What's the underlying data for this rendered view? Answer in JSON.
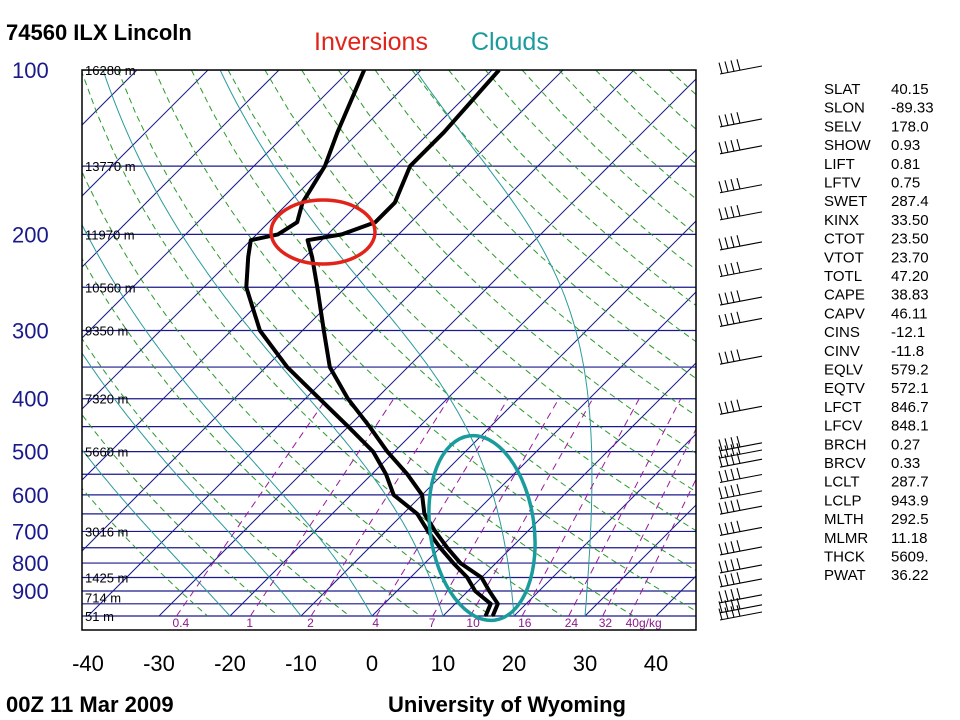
{
  "header": {
    "station": "74560 ILX Lincoln",
    "valid_time": "00Z 11 Mar 2009",
    "source": "University of Wyoming"
  },
  "annotations": {
    "inversions": {
      "text": "Inversions",
      "color": "#e2231a"
    },
    "clouds": {
      "text": "Clouds",
      "color": "#1a9c9c"
    }
  },
  "colors": {
    "isobar": "#1a1a8c",
    "isotherm": "#1a1a8c",
    "dry_adiabat": "#2a9a2a",
    "moist_adiabat": "#2a9a9a",
    "mixing_ratio": "#9a1a9a",
    "profile": "#000000"
  },
  "chart_data": {
    "type": "skew-t",
    "pressure_levels": [
      100,
      200,
      300,
      400,
      500,
      600,
      700,
      800,
      900
    ],
    "height_labels": [
      {
        "p": 100,
        "text": "16280 m"
      },
      {
        "p": 150,
        "text": "13770 m"
      },
      {
        "p": 200,
        "text": "11970 m"
      },
      {
        "p": 250,
        "text": "10560 m"
      },
      {
        "p": 300,
        "text": "9350 m"
      },
      {
        "p": 400,
        "text": "7320 m"
      },
      {
        "p": 500,
        "text": "5660 m"
      },
      {
        "p": 700,
        "text": "3016 m"
      },
      {
        "p": 850,
        "text": "1425 m"
      },
      {
        "p": 925,
        "text": "714 m"
      },
      {
        "p": 1000,
        "text": "51 m"
      }
    ],
    "temperature_ticks": [
      -40,
      -30,
      -20,
      -10,
      0,
      10,
      20,
      30,
      40
    ],
    "mixing_ratio_labels": [
      "0.4",
      "1",
      "2",
      "4",
      "7",
      "10",
      "16",
      "24",
      "32",
      "40g/kg"
    ],
    "temperature_profile": [
      {
        "p": 1000,
        "t": 17
      },
      {
        "p": 950,
        "t": 16
      },
      {
        "p": 900,
        "t": 13
      },
      {
        "p": 850,
        "t": 10
      },
      {
        "p": 800,
        "t": 5
      },
      {
        "p": 750,
        "t": 1
      },
      {
        "p": 700,
        "t": -3
      },
      {
        "p": 650,
        "t": -7
      },
      {
        "p": 600,
        "t": -10
      },
      {
        "p": 550,
        "t": -15
      },
      {
        "p": 500,
        "t": -21
      },
      {
        "p": 450,
        "t": -27
      },
      {
        "p": 400,
        "t": -34
      },
      {
        "p": 350,
        "t": -41
      },
      {
        "p": 300,
        "t": -47
      },
      {
        "p": 250,
        "t": -54
      },
      {
        "p": 220,
        "t": -59
      },
      {
        "p": 205,
        "t": -62
      },
      {
        "p": 200,
        "t": -58
      },
      {
        "p": 190,
        "t": -55
      },
      {
        "p": 175,
        "t": -55
      },
      {
        "p": 150,
        "t": -58
      },
      {
        "p": 130,
        "t": -58
      },
      {
        "p": 100,
        "t": -59
      }
    ],
    "dewpoint_profile": [
      {
        "p": 1000,
        "t": 16
      },
      {
        "p": 950,
        "t": 15
      },
      {
        "p": 900,
        "t": 11
      },
      {
        "p": 850,
        "t": 8
      },
      {
        "p": 800,
        "t": 4
      },
      {
        "p": 750,
        "t": 0
      },
      {
        "p": 700,
        "t": -4
      },
      {
        "p": 650,
        "t": -8
      },
      {
        "p": 600,
        "t": -14
      },
      {
        "p": 550,
        "t": -18
      },
      {
        "p": 500,
        "t": -23
      },
      {
        "p": 450,
        "t": -30
      },
      {
        "p": 400,
        "t": -38
      },
      {
        "p": 350,
        "t": -47
      },
      {
        "p": 300,
        "t": -56
      },
      {
        "p": 250,
        "t": -64
      },
      {
        "p": 220,
        "t": -68
      },
      {
        "p": 205,
        "t": -70
      },
      {
        "p": 200,
        "t": -67
      },
      {
        "p": 190,
        "t": -66
      },
      {
        "p": 175,
        "t": -68
      },
      {
        "p": 150,
        "t": -70
      },
      {
        "p": 130,
        "t": -73
      },
      {
        "p": 100,
        "t": -78
      }
    ],
    "wind_barb_levels": [
      100,
      125,
      140,
      165,
      185,
      210,
      235,
      265,
      290,
      340,
      420,
      490,
      505,
      525,
      560,
      600,
      640,
      700,
      760,
      820,
      870,
      930,
      970,
      1000
    ]
  },
  "indices": [
    {
      "name": "SLAT",
      "value": "40.15"
    },
    {
      "name": "SLON",
      "value": "-89.33"
    },
    {
      "name": "SELV",
      "value": "178.0"
    },
    {
      "name": "SHOW",
      "value": "0.93"
    },
    {
      "name": "LIFT",
      "value": "0.81"
    },
    {
      "name": "LFTV",
      "value": "0.75"
    },
    {
      "name": "SWET",
      "value": "287.4"
    },
    {
      "name": "KINX",
      "value": "33.50"
    },
    {
      "name": "CTOT",
      "value": "23.50"
    },
    {
      "name": "VTOT",
      "value": "23.70"
    },
    {
      "name": "TOTL",
      "value": "47.20"
    },
    {
      "name": "CAPE",
      "value": "38.83"
    },
    {
      "name": "CAPV",
      "value": "46.11"
    },
    {
      "name": "CINS",
      "value": "-12.1"
    },
    {
      "name": "CINV",
      "value": "-11.8"
    },
    {
      "name": "EQLV",
      "value": "579.2"
    },
    {
      "name": "EQTV",
      "value": "572.1"
    },
    {
      "name": "LFCT",
      "value": "846.7"
    },
    {
      "name": "LFCV",
      "value": "848.1"
    },
    {
      "name": "BRCH",
      "value": "0.27"
    },
    {
      "name": "BRCV",
      "value": "0.33"
    },
    {
      "name": "LCLT",
      "value": "287.7"
    },
    {
      "name": "LCLP",
      "value": "943.9"
    },
    {
      "name": "MLTH",
      "value": "292.5"
    },
    {
      "name": "MLMR",
      "value": "11.18"
    },
    {
      "name": "THCK",
      "value": "5609."
    },
    {
      "name": "PWAT",
      "value": "36.22"
    }
  ]
}
